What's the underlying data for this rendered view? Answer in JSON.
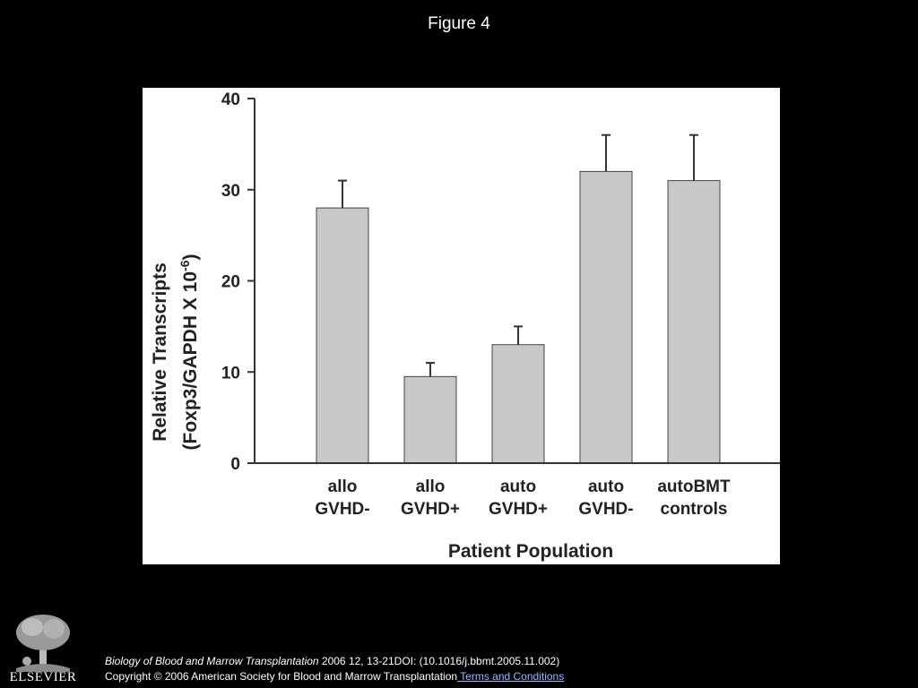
{
  "slide": {
    "title": "Figure 4"
  },
  "chart_data": {
    "type": "bar",
    "categories": [
      [
        "allo",
        "GVHD-"
      ],
      [
        "allo",
        "GVHD+"
      ],
      [
        "auto",
        "GVHD+"
      ],
      [
        "auto",
        "GVHD-"
      ],
      [
        "autoBMT",
        "controls"
      ]
    ],
    "values": [
      28,
      9.5,
      13,
      32,
      31
    ],
    "error_upper": [
      31,
      11,
      15,
      36,
      36
    ],
    "xlabel": "Patient Population",
    "ylabel_line1": "Relative Transcripts",
    "ylabel_line2_prefix": "(Foxp3/GAPDH X 10",
    "ylabel_line2_exponent": "-6",
    "ylabel_line2_suffix": ")",
    "ylim": [
      0,
      40
    ],
    "yticks": [
      0,
      10,
      20,
      30,
      40
    ],
    "bar_color": "#c8c8c8",
    "grid": false
  },
  "footer": {
    "logo_text": "ELSEVIER",
    "journal": "Biology of Blood and Marrow Transplantation",
    "citation_rest": " 2006 12, 13-21DOI: (10.1016/j.bbmt.2005.11.002)",
    "copyright": "Copyright © 2006 American Society for Blood and Marrow Transplantation",
    "terms_link": " Terms and Conditions"
  }
}
